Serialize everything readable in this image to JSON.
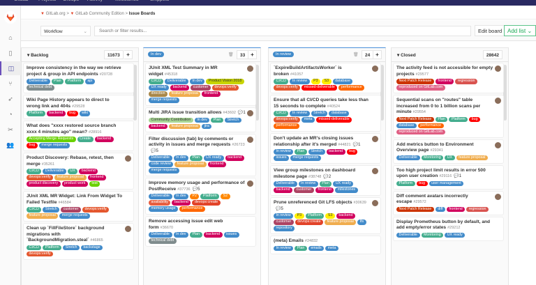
{
  "topnav": {
    "items": [
      "GitLab",
      "Projects",
      "Groups",
      "Activity",
      "Milestones",
      "Snippets"
    ]
  },
  "breadcrumb": [
    "GitLab.org",
    "GitLab Community Edition",
    "Issue Boards"
  ],
  "filter": {
    "board_select": "Workflow",
    "search_placeholder": "Search or filter results...",
    "edit_board": "Edit board",
    "add_list": "Add list"
  },
  "sidebar_icons": [
    "home-icon",
    "project-icon",
    "issue-boards-icon",
    "merge-request-icon",
    "rocket-icon",
    "chart-icon",
    "snippet-icon",
    "members-icon"
  ],
  "label_colors": {
    "Deliverable": "#428bca",
    "Plan": "#44ad8e",
    "Platform": "#44ad8e",
    "api": "#428bca",
    "technical debt": "#7f8c8d",
    "backend": "#d1005d",
    "bug": "#ff0000",
    "wiki": "#428bca",
    "Accepting Merge Requests": "#69d100",
    "Create": "#44ad8e",
    "merge requests": "#428bca",
    "CI/CD": "#44ad8e",
    "UX": "#44ad8e",
    "devops:verify": "#e4572e",
    "feature proposal": "#f0ad4e",
    "frontend": "#d1005d",
    "product discovery": "#d1005d",
    "product work": "#d1005d",
    "test": "#69d100",
    "Stretch": "#428bca",
    "customer": "#ad4363",
    "backstage": "#428bca",
    "In dev": "#428bca",
    "Product Vision 2018": "#c8d400",
    "UX ready": "#428bca",
    "direction": "#a8874a",
    "Community Contribution": "#a8d695",
    "jira": "#428bca",
    "code review": "#428bca",
    "P2": "#ff7f00",
    "S2": "#ff8800",
    "availability": "#e75e40",
    "devops:create": "#e24329",
    "memory usage": "#428bca",
    "performance": "#ff6600",
    "issues": "#428bca",
    "In review": "#428bca",
    "P3": "#ffee00",
    "S3": "#ffee00",
    "database": "#428bca",
    "missed-deliverable": "#ff0000",
    "meta": "#428bca",
    "milestones": "#428bca",
    "lfs": "#428bca",
    "repository": "#428bca",
    "emails": "#428bca",
    "Next Patch Release": "#cc3300",
    "regression": "#d9534f",
    "reproduced on GitLab.com": "#e05e83",
    "Monitoring": "#44ad8e",
    "user management": "#428bca",
    "diff": "#428bca"
  },
  "columns": [
    {
      "title": "Backlog",
      "pill": false,
      "count": "11673",
      "cards": [
        {
          "title": "Improve consistency in the way we retrieve project & group in API endpoints",
          "num": "#20728",
          "labels": [
            "Deliverable",
            "Plan",
            "Platform",
            "api",
            "technical debt"
          ]
        },
        {
          "title": "Wiki Page History appears to direct to wrong link and 404s",
          "num": "#29528",
          "labels": [
            "Platform",
            "backend",
            "bug",
            "wiki"
          ]
        },
        {
          "title": "What does \"xxxx restored source branch xxxx 4 minutes ago\" mean?",
          "num": "#28916",
          "labels": [
            "Accepting Merge Requests",
            "Create",
            "backend",
            "bug",
            "merge requests"
          ]
        },
        {
          "title": "Product Discovery: Rebase, retest, then merge",
          "num": "#35261",
          "avatar": true,
          "labels": [
            "CI/CD",
            "Deliverable",
            "UX",
            "backend",
            "devops:verify",
            "feature proposal",
            "frontend",
            "product discovery",
            "product work",
            "test"
          ]
        },
        {
          "title": "JUnit XML MR Widget: Link From Widget To Failed Testfile",
          "num": "#46584",
          "labels": [
            "CI/CD",
            "Stretch",
            "customer",
            "devops:verify",
            "feature proposal",
            "merge requests"
          ]
        },
        {
          "title": "Clean up `FillFileStore` background migrations with `BackgroundMigration.steal`",
          "num": "#46865",
          "avatar": true,
          "labels": [
            "CI/CD",
            "Platform",
            "Stretch",
            "backstage",
            "devops:verify"
          ]
        }
      ]
    },
    {
      "title": "In dev",
      "pill": true,
      "count": "33",
      "cards": [
        {
          "title": "JUnit XML Test Summary in MR widget",
          "num": "#45318",
          "avatar": true,
          "labels": [
            "CI/CD",
            "Deliverable",
            "In dev",
            "Product Vision 2018",
            "UX ready",
            "backend",
            "customer",
            "devops:verify",
            "direction",
            "feature proposal",
            "frontend",
            "merge requests"
          ]
        },
        {
          "title": "Multi JIRA issue transition allows",
          "num": "#43602",
          "comments": "1",
          "avatar": true,
          "labels": [
            "Community Contribution",
            "In dev",
            "Plan",
            "Stretch",
            "backend",
            "feature proposal",
            "jira"
          ]
        },
        {
          "title": "Filter discussion (tab) by comments or activity in issues and merge requests",
          "num": "#26723",
          "comments": "5",
          "avatar": true,
          "labels": [
            "Deliverable",
            "In dev",
            "Plan",
            "UX ready",
            "backend",
            "code review",
            "feature proposal",
            "frontend",
            "merge requests"
          ]
        },
        {
          "title": "Improve memory usage and performance of PostReceive",
          "num": "#37736",
          "comments": "5",
          "avatar": true,
          "labels": [
            "Deliverable",
            "In dev",
            "P2",
            "Platform",
            "S2",
            "availability",
            "backend",
            "devops:create",
            "memory usage",
            "performance"
          ]
        },
        {
          "title": "Remove accessing issue edit web form",
          "num": "#36670",
          "labels": [
            "Deliverable",
            "In dev",
            "Plan",
            "backend",
            "issues",
            "technical debt"
          ]
        }
      ]
    },
    {
      "title": "In review",
      "pill": true,
      "count": "24",
      "cards": [
        {
          "title": "`ExpireBuildArtifactsWorker` is broken",
          "num": "#41057",
          "avatar": true,
          "labels": [
            "CI/CD",
            "In review",
            "P3",
            "S3",
            "database",
            "devops:verify",
            "missed-deliverable",
            "performance"
          ]
        },
        {
          "title": "Ensure that all CI/CD queries take less than 15 seconds to complete",
          "num": "#40524",
          "labels": [
            "CI/CD",
            "In review",
            "Stretch",
            "database",
            "devops:verify",
            "meta",
            "missed-deliverable",
            "performance"
          ]
        },
        {
          "title": "Don't update an MR's closing issues relationship after it's merged",
          "num": "#44821",
          "comments": "1",
          "avatar": true,
          "labels": [
            "In review",
            "Plan",
            "Stretch",
            "backend",
            "bug",
            "issues",
            "merge requests"
          ]
        },
        {
          "title": "View group milestones on dashboard milestone page",
          "num": "#38748",
          "comments": "2",
          "avatar": true,
          "labels": [
            "Deliverable",
            "In review",
            "Plan",
            "UX ready",
            "backend",
            "customer",
            "frontend",
            "milestones"
          ]
        },
        {
          "title": "Prune unreferenced Git LFS objects",
          "num": "#30639",
          "comments": "5",
          "avatar": true,
          "labels": [
            "In review",
            "P3",
            "Platform",
            "S3",
            "backend",
            "customer",
            "devops:create",
            "feature proposal",
            "lfs",
            "repository"
          ]
        },
        {
          "title": "(meta) Emails",
          "num": "#24832",
          "labels": [
            "In review",
            "Plan",
            "emails",
            "meta"
          ]
        }
      ]
    },
    {
      "title": "Closed",
      "pill": false,
      "count": "28642",
      "cards": [
        {
          "title": "The activity feed is not accessible for empty projects",
          "num": "#29577",
          "avatar": true,
          "labels": [
            "Next Patch Release",
            "frontend",
            "regression",
            "reproduced on GitLab.com"
          ]
        },
        {
          "title": "Sequential scans on \"routes\" table increased from 0 to 1 billion scans per minute",
          "num": "#29554",
          "avatar": true,
          "labels": [
            "Next Patch Release",
            "Plan",
            "Platform",
            "bug",
            "database",
            "performance",
            "reproduced on GitLab.com"
          ]
        },
        {
          "title": "Add metrics button to Environment Overview page",
          "num": "#29341",
          "avatar": true,
          "labels": [
            "Deliverable",
            "Monitoring",
            "UX",
            "feature proposal"
          ]
        },
        {
          "title": "Too high project limit results in error 500 upon user creation",
          "num": "#29116",
          "comments": "1",
          "labels": [
            "Platform",
            "bug",
            "user management"
          ]
        },
        {
          "title": "Diff comment avatars incorrectly escape",
          "num": "#29572",
          "avatar": true,
          "labels": [
            "Next Patch Release",
            "diff",
            "frontend",
            "regression"
          ]
        },
        {
          "title": "Display Prometheus button by default, and add empty/error states",
          "num": "#29212",
          "labels": [
            "Deliverable",
            "Monitoring",
            "UX ready"
          ]
        }
      ]
    }
  ]
}
